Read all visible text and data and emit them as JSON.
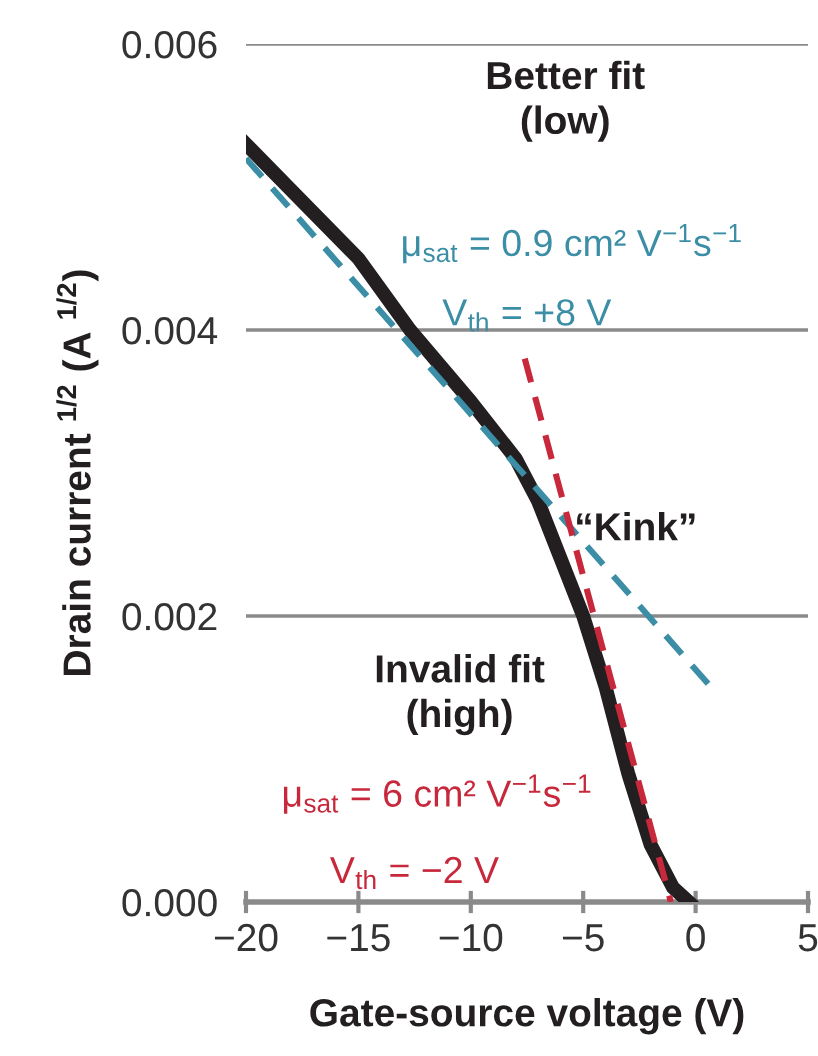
{
  "chart_data": {
    "type": "line",
    "xlabel": "Gate-source voltage (V)",
    "ylabel": "Drain current $^{1/2}$ (A $^{1/2}$)",
    "xlim": [
      -20,
      5
    ],
    "ylim": [
      0,
      0.006
    ],
    "xticks": [
      {
        "value": -20,
        "label": "−20"
      },
      {
        "value": -15,
        "label": "−15"
      },
      {
        "value": -10,
        "label": "−10"
      },
      {
        "value": -5,
        "label": "−5"
      },
      0,
      5
    ],
    "yticks": [
      {
        "value": 0,
        "label": "0.000"
      },
      {
        "value": 0.002,
        "label": "0.002"
      },
      {
        "value": 0.004,
        "label": "0.004"
      },
      {
        "value": 0.006,
        "label": "0.006"
      }
    ],
    "grid": "y",
    "marker": "none",
    "series": [
      {
        "color": "#231f20",
        "line_style": "solid",
        "x": [
          -20,
          -17.5,
          -15,
          -12.7,
          -10,
          -8,
          -7,
          -6,
          -5,
          -4,
          -3,
          -2,
          -1,
          -0.3
        ],
        "values": [
          0.0053,
          0.0049,
          0.0045,
          0.004,
          0.0035,
          0.0031,
          0.0028,
          0.0024,
          0.002,
          0.0015,
          0.0009,
          0.0004,
          0.0001,
          0
        ]
      },
      {
        "color": "#3b8ea5",
        "line_style": "dashed",
        "x": [
          -20,
          0.7
        ],
        "values": [
          0.0052,
          0.0015
        ]
      },
      {
        "color": "#c8283c",
        "line_style": "dashed",
        "x": [
          -7.6,
          -1.1
        ],
        "values": [
          0.0038,
          0
        ]
      }
    ],
    "annotations": [
      "Better fit\n(low)",
      "μ$_{sat}$ = 0.9 cm² V$^{−1}$s$^{−1}$",
      "V$_{th}$ = +8 V",
      {
        "text": "“Kink”",
        "x": -7.6,
        "y": 0.003
      },
      "Invalid fit\n(high)",
      "μ$_{sat}$ = 6 cm² V$^{−1}$s$^{−1}$",
      "V$_{th}$ = −2 V"
    ]
  }
}
